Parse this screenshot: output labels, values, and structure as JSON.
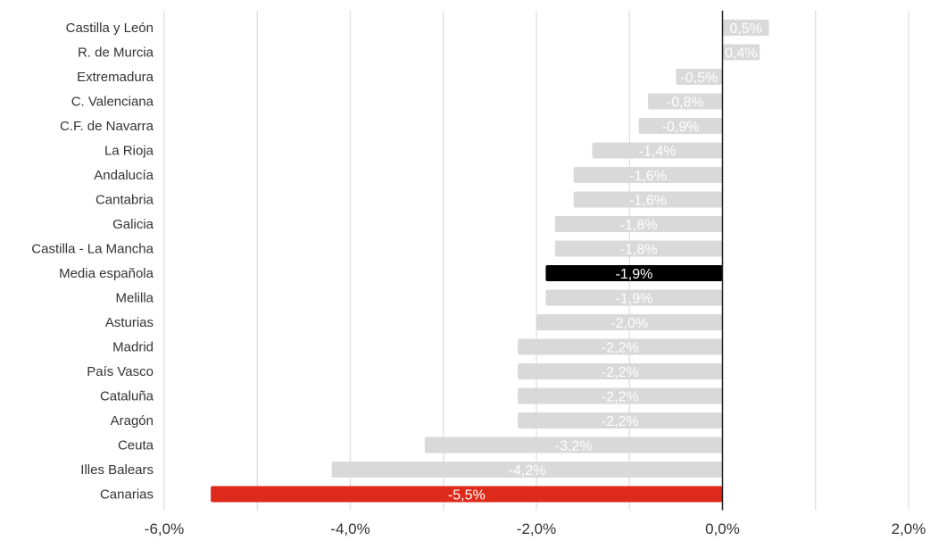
{
  "chart_data": {
    "type": "bar",
    "orientation": "horizontal",
    "categories": [
      "Castilla y León",
      "R. de Murcia",
      "Extremadura",
      "C. Valenciana",
      "C.F. de Navarra",
      "La Rioja",
      "Andalucía",
      "Cantabria",
      "Galicia",
      "Castilla - La Mancha",
      "Media española",
      "Melilla",
      "Asturias",
      "Madrid",
      "País Vasco",
      "Cataluña",
      "Aragón",
      "Ceuta",
      "Illes Balears",
      "Canarias"
    ],
    "values": [
      0.5,
      0.4,
      -0.5,
      -0.8,
      -0.9,
      -1.4,
      -1.6,
      -1.6,
      -1.8,
      -1.8,
      -1.9,
      -1.9,
      -2.0,
      -2.2,
      -2.2,
      -2.2,
      -2.2,
      -3.2,
      -4.2,
      -5.5
    ],
    "value_labels": [
      "0,5%",
      "0,4%",
      "-0,5%",
      "-0,8%",
      "-0,9%",
      "-1,4%",
      "-1,6%",
      "-1,6%",
      "-1,8%",
      "-1,8%",
      "-1,9%",
      "-1,9%",
      "-2,0%",
      "-2,2%",
      "-2,2%",
      "-2,2%",
      "-2,2%",
      "-3,2%",
      "-4,2%",
      "-5,5%"
    ],
    "xlim": [
      -6.0,
      2.0
    ],
    "xticks": [
      -6.0,
      -4.0,
      -2.0,
      0.0,
      2.0
    ],
    "xtick_labels": [
      "-6,0%",
      "-4,0%",
      "-2,0%",
      "0,0%",
      "2,0%"
    ],
    "title": "",
    "xlabel": "",
    "ylabel": "",
    "grid": true,
    "legend": "none",
    "colors": {
      "default_bar": "#d9d9d9",
      "highlight_average": "#000000",
      "highlight_min": "#dd2a1b",
      "gridline": "#e0e0e0",
      "zero_line": "#222222"
    },
    "highlights": {
      "Media española": "highlight_average",
      "Canarias": "highlight_min"
    }
  }
}
